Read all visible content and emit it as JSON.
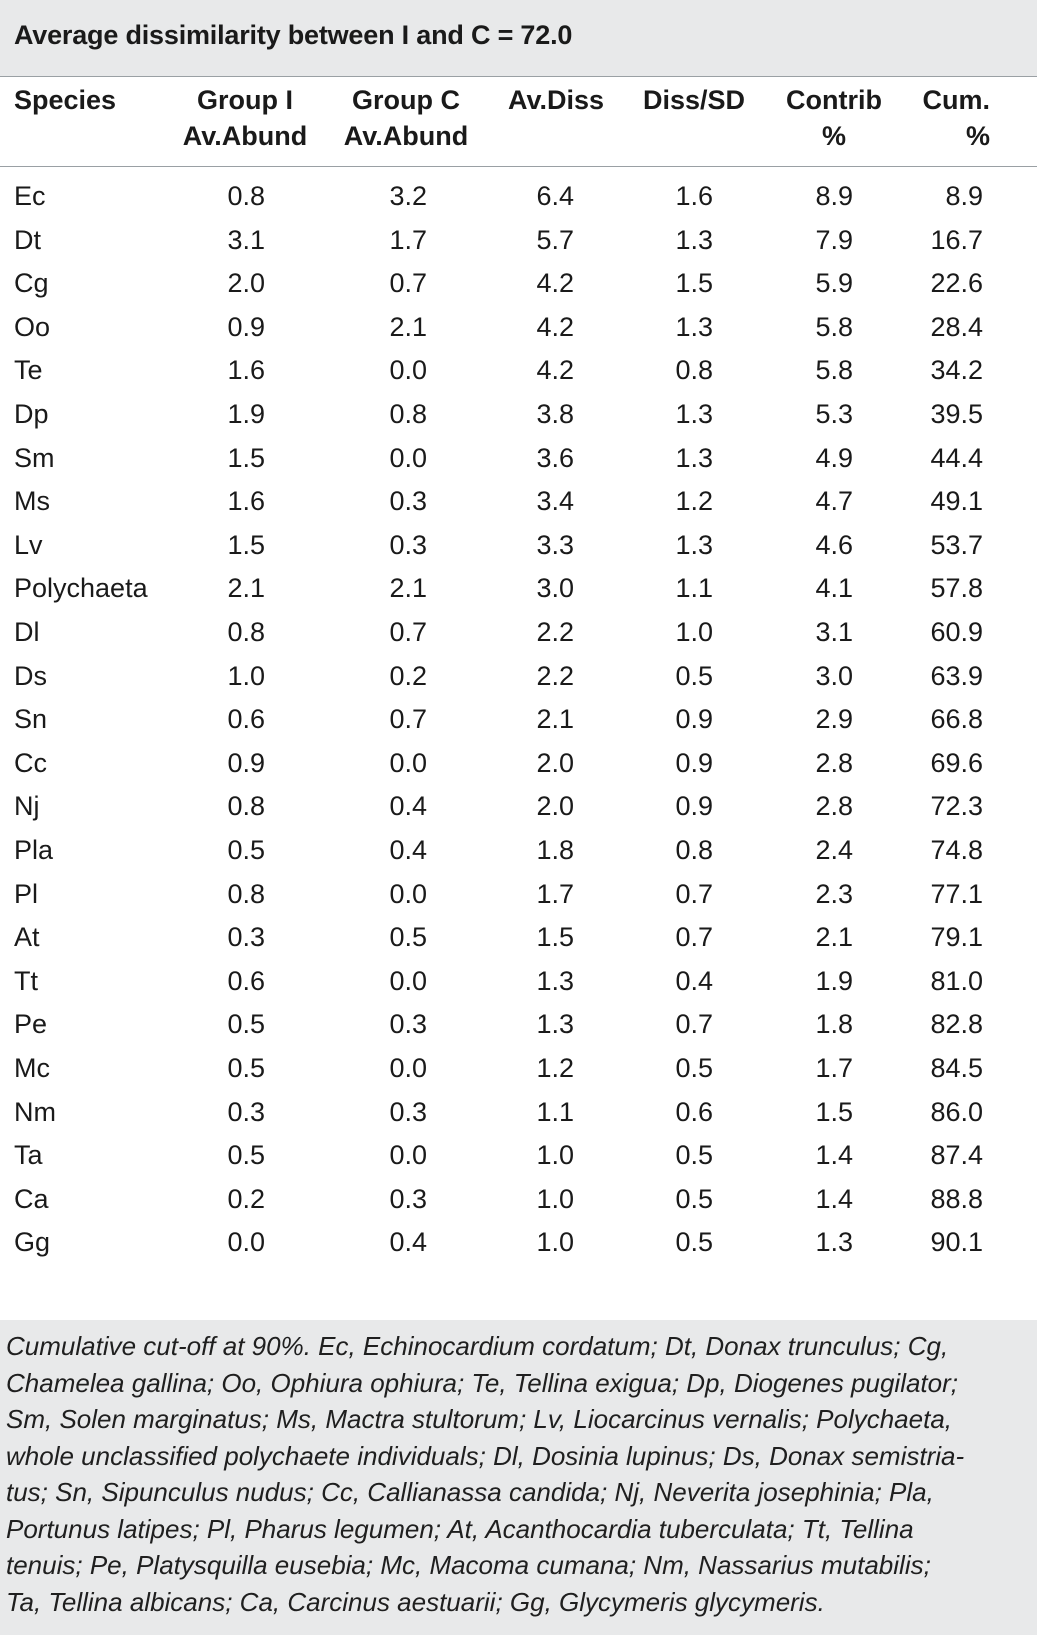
{
  "title": "Average dissimilarity between I and C = 72.0",
  "headers": [
    [
      "Species"
    ],
    [
      "Group I",
      "Av.Abund"
    ],
    [
      "Group C",
      "Av.Abund"
    ],
    [
      "Av.Diss"
    ],
    [
      "Diss/SD"
    ],
    [
      "Contrib",
      "%"
    ],
    [
      "Cum.",
      "%"
    ]
  ],
  "rows": [
    [
      "Ec",
      "0.8",
      "3.2",
      "6.4",
      "1.6",
      "8.9",
      "8.9"
    ],
    [
      "Dt",
      "3.1",
      "1.7",
      "5.7",
      "1.3",
      "7.9",
      "16.7"
    ],
    [
      "Cg",
      "2.0",
      "0.7",
      "4.2",
      "1.5",
      "5.9",
      "22.6"
    ],
    [
      "Oo",
      "0.9",
      "2.1",
      "4.2",
      "1.3",
      "5.8",
      "28.4"
    ],
    [
      "Te",
      "1.6",
      "0.0",
      "4.2",
      "0.8",
      "5.8",
      "34.2"
    ],
    [
      "Dp",
      "1.9",
      "0.8",
      "3.8",
      "1.3",
      "5.3",
      "39.5"
    ],
    [
      "Sm",
      "1.5",
      "0.0",
      "3.6",
      "1.3",
      "4.9",
      "44.4"
    ],
    [
      "Ms",
      "1.6",
      "0.3",
      "3.4",
      "1.2",
      "4.7",
      "49.1"
    ],
    [
      "Lv",
      "1.5",
      "0.3",
      "3.3",
      "1.3",
      "4.6",
      "53.7"
    ],
    [
      "Polychaeta",
      "2.1",
      "2.1",
      "3.0",
      "1.1",
      "4.1",
      "57.8"
    ],
    [
      "Dl",
      "0.8",
      "0.7",
      "2.2",
      "1.0",
      "3.1",
      "60.9"
    ],
    [
      "Ds",
      "1.0",
      "0.2",
      "2.2",
      "0.5",
      "3.0",
      "63.9"
    ],
    [
      "Sn",
      "0.6",
      "0.7",
      "2.1",
      "0.9",
      "2.9",
      "66.8"
    ],
    [
      "Cc",
      "0.9",
      "0.0",
      "2.0",
      "0.9",
      "2.8",
      "69.6"
    ],
    [
      "Nj",
      "0.8",
      "0.4",
      "2.0",
      "0.9",
      "2.8",
      "72.3"
    ],
    [
      "Pla",
      "0.5",
      "0.4",
      "1.8",
      "0.8",
      "2.4",
      "74.8"
    ],
    [
      "Pl",
      "0.8",
      "0.0",
      "1.7",
      "0.7",
      "2.3",
      "77.1"
    ],
    [
      "At",
      "0.3",
      "0.5",
      "1.5",
      "0.7",
      "2.1",
      "79.1"
    ],
    [
      "Tt",
      "0.6",
      "0.0",
      "1.3",
      "0.4",
      "1.9",
      "81.0"
    ],
    [
      "Pe",
      "0.5",
      "0.3",
      "1.3",
      "0.7",
      "1.8",
      "82.8"
    ],
    [
      "Mc",
      "0.5",
      "0.0",
      "1.2",
      "0.5",
      "1.7",
      "84.5"
    ],
    [
      "Nm",
      "0.3",
      "0.3",
      "1.1",
      "0.6",
      "1.5",
      "86.0"
    ],
    [
      "Ta",
      "0.5",
      "0.0",
      "1.0",
      "0.5",
      "1.4",
      "87.4"
    ],
    [
      "Ca",
      "0.2",
      "0.3",
      "1.0",
      "0.5",
      "1.4",
      "88.8"
    ],
    [
      "Gg",
      "0.0",
      "0.4",
      "1.0",
      "0.5",
      "1.3",
      "90.1"
    ]
  ],
  "footnote": [
    "Cumulative cut-off at 90%. Ec, Echinocardium cordatum; Dt, Donax trunculus; Cg,",
    "Chamelea gallina; Oo, Ophiura ophiura; Te, Tellina exigua; Dp, Diogenes pugilator;",
    "Sm, Solen marginatus; Ms, Mactra stultorum; Lv, Liocarcinus vernalis; Polychaeta,",
    "whole unclassified polychaete individuals; Dl, Dosinia lupinus; Ds, Donax semistria-",
    "tus; Sn, Sipunculus nudus; Cc, Callianassa candida; Nj, Neverita josephinia; Pla,",
    "Portunus latipes; Pl, Pharus legumen; At, Acanthocardia tuberculata; Tt, Tellina",
    "tenuis; Pe, Platysquilla eusebia; Mc, Macoma cumana; Nm, Nassarius mutabilis;",
    "Ta, Tellina albicans; Ca, Carcinus aestuarii; Gg, Glycymeris glycymeris."
  ]
}
